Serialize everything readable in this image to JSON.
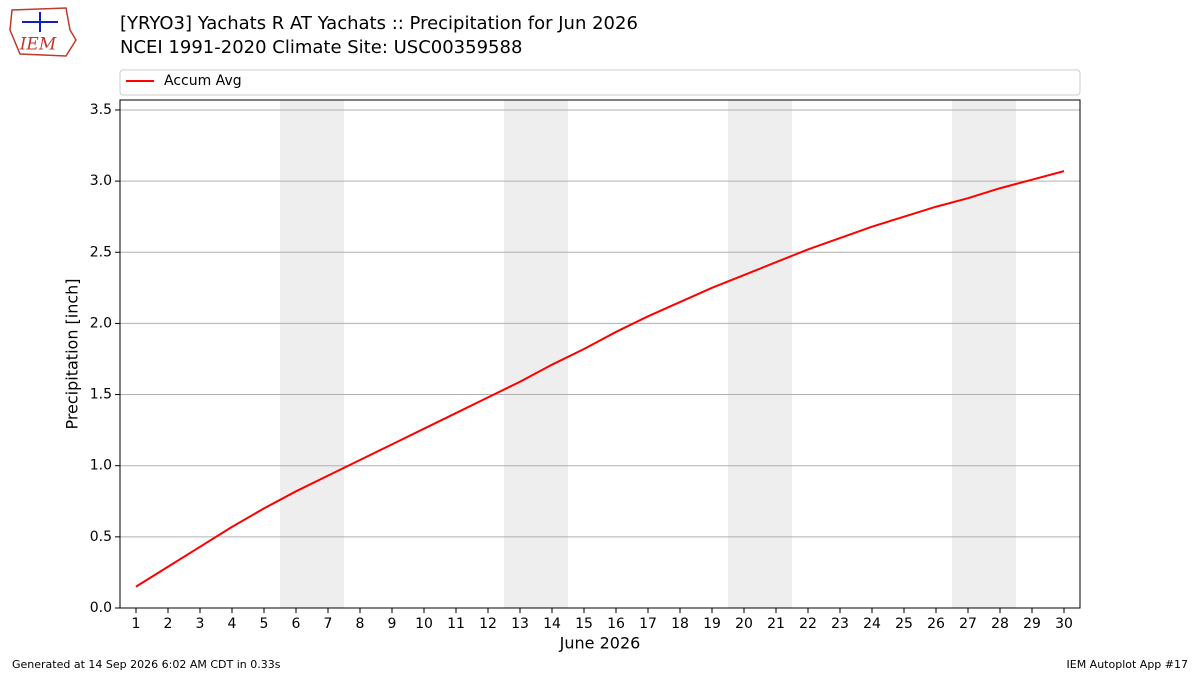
{
  "logo_text": "IEM",
  "chart_data": {
    "type": "line",
    "title": "[YRYO3] Yachats R  AT Yachats :: Precipitation for Jun 2026",
    "subtitle": "NCEI 1991-2020 Climate Site: USC00359588",
    "x_label": "June 2026",
    "y_label": "Precipitation [inch]",
    "x": [
      1,
      2,
      3,
      4,
      5,
      6,
      7,
      8,
      9,
      10,
      11,
      12,
      13,
      14,
      15,
      16,
      17,
      18,
      19,
      20,
      21,
      22,
      23,
      24,
      25,
      26,
      27,
      28,
      29,
      30
    ],
    "series": [
      {
        "name": "Accum Avg",
        "color": "#ff0000",
        "values": [
          0.15,
          0.29,
          0.43,
          0.57,
          0.7,
          0.82,
          0.93,
          1.04,
          1.15,
          1.26,
          1.37,
          1.48,
          1.59,
          1.71,
          1.82,
          1.94,
          2.05,
          2.15,
          2.25,
          2.34,
          2.43,
          2.52,
          2.6,
          2.68,
          2.75,
          2.82,
          2.88,
          2.95,
          3.01,
          3.07
        ]
      }
    ],
    "xlim": [
      0.5,
      30.5
    ],
    "xticks": [
      1,
      2,
      3,
      4,
      5,
      6,
      7,
      8,
      9,
      10,
      11,
      12,
      13,
      14,
      15,
      16,
      17,
      18,
      19,
      20,
      21,
      22,
      23,
      24,
      25,
      26,
      27,
      28,
      29,
      30
    ],
    "ylim": [
      0,
      3.57
    ],
    "yticks": [
      {
        "value": 0,
        "label": "0.0"
      },
      0.5,
      {
        "value": 1,
        "label": "1.0"
      },
      1.5,
      {
        "value": 2,
        "label": "2.0"
      },
      2.5,
      {
        "value": 3,
        "label": "3.0"
      },
      3.5
    ],
    "grid": true,
    "shaded_spans": [
      [
        5.5,
        7.5
      ],
      [
        12.5,
        14.5
      ],
      [
        19.5,
        21.5
      ],
      [
        26.5,
        28.5
      ]
    ],
    "shade_color": "#eeeeee",
    "legend": "top"
  },
  "footer": {
    "left": "Generated at 14 Sep 2026 6:02 AM CDT in 0.33s",
    "right": "IEM Autoplot App #17"
  }
}
